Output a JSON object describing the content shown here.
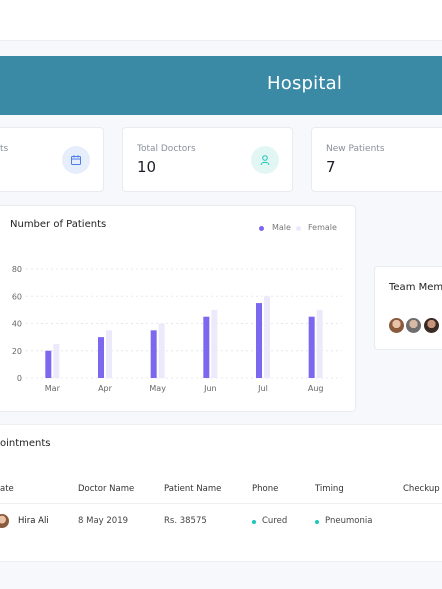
{
  "banner": {
    "title": "Hospital"
  },
  "stats": [
    {
      "label": "ts",
      "value": "",
      "icon": "calendar-icon"
    },
    {
      "label": "Total Doctors",
      "value": "10",
      "icon": "user-icon"
    },
    {
      "label": "New Patients",
      "value": "7",
      "icon": ""
    }
  ],
  "chart_data": {
    "type": "bar",
    "title": "Number of Patients",
    "categories": [
      "Mar",
      "Apr",
      "May",
      "Jun",
      "Jul",
      "Aug"
    ],
    "series": [
      {
        "name": "Male",
        "values": [
          20,
          30,
          35,
          45,
          55,
          45
        ],
        "color": "#7b68ee"
      },
      {
        "name": "Female",
        "values": [
          25,
          35,
          40,
          50,
          60,
          50
        ],
        "color": "#ece9fb"
      }
    ],
    "yticks": [
      "0",
      "20",
      "40",
      "60",
      "80"
    ],
    "ylim": [
      0,
      80
    ],
    "grid": true,
    "legend": "top-right"
  },
  "team": {
    "title": "Team Mem"
  },
  "appointments": {
    "title": "ointments",
    "headers": [
      "ate",
      "Doctor Name",
      "Patient Name",
      "Phone",
      "Timing",
      "Checkup"
    ],
    "rows": [
      {
        "name": "Hira Ali",
        "date": "8 May 2019",
        "amount": "Rs. 38575",
        "status": "Cured",
        "status_color": "#1bc5bd",
        "disease": "Pneumonia",
        "disease_color": "#1bc5bd"
      }
    ]
  },
  "colors": {
    "accent": "#3a8aa6",
    "male": "#7b68ee",
    "female": "#ece9fb",
    "teal": "#1bc5bd"
  }
}
